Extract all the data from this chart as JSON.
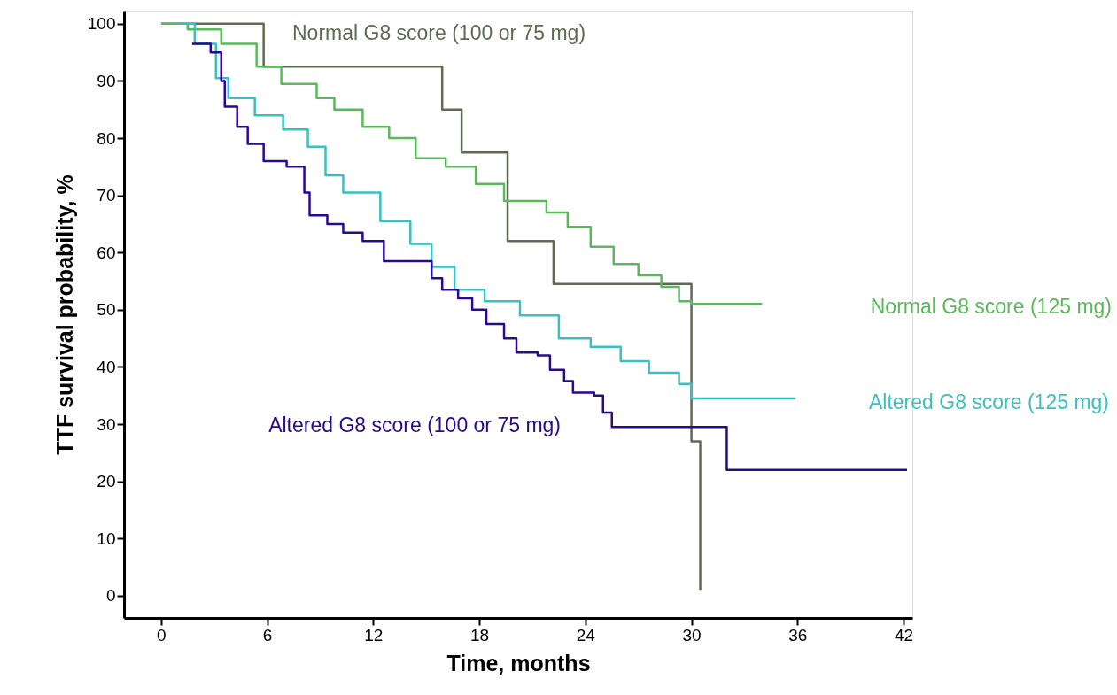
{
  "chart_data": {
    "type": "step",
    "xlabel": "Time, months",
    "ylabel": "TTF survival probability, %",
    "xlim": [
      -2.1,
      42.5
    ],
    "xticks": [
      0,
      6,
      12,
      18,
      24,
      30,
      36,
      42
    ],
    "ylim": [
      -3.9,
      102.3
    ],
    "yticks": [
      0,
      10,
      20,
      30,
      40,
      50,
      60,
      70,
      80,
      90,
      100
    ],
    "grid": false,
    "marker": "none",
    "line_style": "solid",
    "series": [
      {
        "name": "Normal G8 score (100 or 75 mg)",
        "color": "#5e6b52",
        "x": [
          0,
          5.8,
          15.9,
          17,
          19.6,
          22.2,
          30.0,
          30.5
        ],
        "values": [
          100,
          92.5,
          85,
          77.5,
          62,
          54.5,
          27,
          1
        ]
      },
      {
        "name": "Normal G8 score (125 mg)",
        "color": "#5cb85c",
        "x": [
          0,
          1.5,
          3.4,
          5.4,
          6.8,
          8.8,
          9.8,
          11.4,
          12.9,
          14.4,
          16.1,
          17.8,
          19.4,
          21.8,
          23.0,
          24.3,
          25.6,
          27.0,
          28.3,
          29.3,
          30.0,
          34.0
        ],
        "values": [
          100,
          99,
          96.5,
          92.5,
          89.5,
          87,
          85,
          82,
          80,
          76.5,
          75,
          72,
          69,
          67,
          64.5,
          61,
          58,
          56,
          54,
          51.5,
          51,
          51
        ]
      },
      {
        "name": "Altered G8 score (125 mg)",
        "color": "#3ebfbf",
        "x": [
          1.0,
          1.9,
          3.1,
          3.8,
          5.3,
          6.9,
          8.3,
          9.3,
          10.3,
          12.4,
          14.1,
          15.3,
          16.6,
          18.3,
          20.3,
          22.5,
          24.3,
          26.0,
          27.6,
          29.3,
          30.0,
          35.9
        ],
        "values": [
          100,
          96.5,
          90.5,
          87,
          84,
          81.5,
          78.5,
          73.5,
          70.5,
          65.5,
          61.5,
          57.5,
          53.5,
          51.5,
          49,
          45,
          43.5,
          41,
          39,
          37,
          34.5,
          34.5
        ]
      },
      {
        "name": "Altered G8 score (100 or 75 mg)",
        "color": "#2a0a8c",
        "x": [
          1.75,
          2.8,
          3.4,
          3.6,
          4.3,
          4.9,
          5.8,
          7.1,
          8.1,
          8.4,
          9.4,
          10.3,
          11.4,
          12.6,
          15.3,
          15.9,
          16.8,
          17.6,
          18.4,
          19.4,
          20.1,
          21.3,
          22.0,
          22.8,
          23.3,
          24.5,
          25.0,
          25.5,
          32.0,
          42.2
        ],
        "values": [
          96.5,
          95,
          90,
          85.5,
          82,
          79,
          76,
          75,
          70.5,
          66.5,
          65,
          63.5,
          62,
          58.5,
          55.5,
          53.5,
          52,
          50,
          47.5,
          45,
          42.5,
          42,
          39.5,
          37.5,
          35.5,
          35,
          32,
          29.5,
          22,
          22
        ]
      }
    ]
  }
}
